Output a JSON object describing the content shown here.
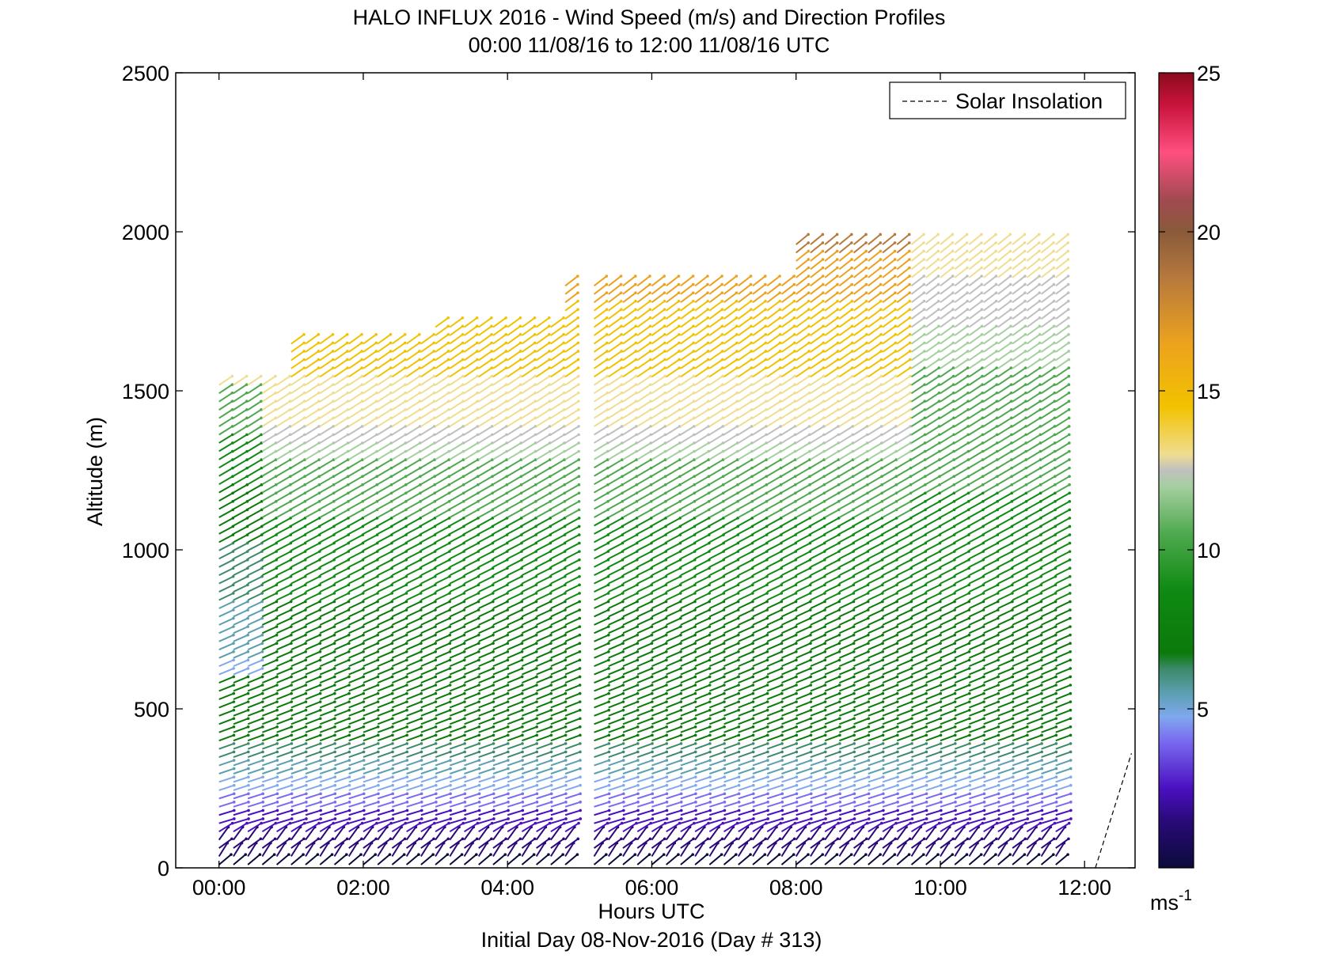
{
  "chart_data": {
    "type": "wind-profile (barbs/arrows)",
    "title": "HALO INFLUX 2016 - Wind Speed (m/s) and Direction Profiles",
    "subtitle": "00:00 11/08/16 to 12:00 11/08/16  UTC",
    "xlabel": "Hours UTC",
    "ylabel": "Altitude (m)",
    "footer": "Initial Day 08-Nov-2016 (Day # 313)",
    "x_tick_labels": [
      "00:00",
      "02:00",
      "04:00",
      "06:00",
      "08:00",
      "10:00",
      "12:00"
    ],
    "x_tick_hours": [
      0,
      2,
      4,
      6,
      8,
      10,
      12
    ],
    "xlim_hours": [
      -0.6,
      12.7
    ],
    "y_ticks": [
      0,
      500,
      1000,
      1500,
      2000,
      2500
    ],
    "ylim": [
      0,
      2500
    ],
    "legend": {
      "entries": [
        "Solar Insolation"
      ],
      "style": "dashed",
      "placement": "top-right"
    },
    "colorbar": {
      "label": "ms",
      "label_superscript": "-1",
      "range": [
        0,
        25
      ],
      "ticks": [
        5,
        10,
        15,
        20,
        25
      ]
    },
    "solar_insolation": {
      "hours": [
        12.15,
        12.65
      ],
      "altitudes": [
        0,
        360
      ]
    },
    "profile_hours_approx": "profiles every ~0.2 h from 00:00 to 11:45 UTC; gap near 04:50-05:05",
    "speed_structure_ms": [
      {
        "layer": "0-150 m",
        "speed": "1-3"
      },
      {
        "layer": "150-400 m",
        "speed": "4-7"
      },
      {
        "layer": "400-1100 m",
        "speed": "7-10"
      },
      {
        "layer": "1100-1350 m",
        "speed": "11-13"
      },
      {
        "layer": "1350-1800 m",
        "speed": "14-17"
      },
      {
        "layer": "1800-2000 m",
        "speed": "17-20"
      }
    ]
  }
}
